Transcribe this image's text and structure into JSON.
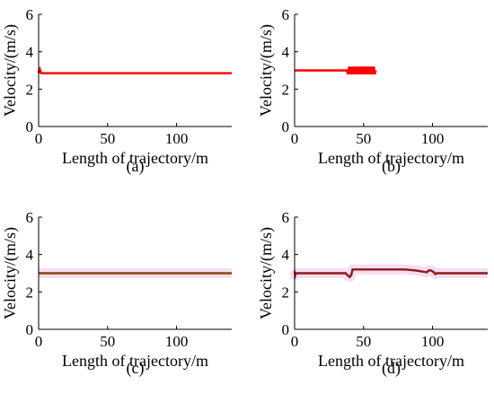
{
  "chart_data": [
    {
      "type": "line",
      "caption": "(a)",
      "xlabel": "Length of trajectory/m",
      "ylabel": "Velocity/(m/s)",
      "xlim": [
        0,
        140
      ],
      "ylim": [
        0,
        6
      ],
      "xticks": [
        "0",
        "50",
        "100"
      ],
      "yticks": [
        "0",
        "2",
        "4",
        "6"
      ],
      "grid": false,
      "series": [
        {
          "color": "#ff0000",
          "band_color": null,
          "x": [
            0,
            0.3,
            1,
            2,
            3,
            140
          ],
          "y": [
            3.0,
            2.85,
            3.05,
            2.85,
            2.85,
            2.85
          ]
        }
      ]
    },
    {
      "type": "line",
      "caption": "(b)",
      "xlabel": "Length of trajectory/m",
      "ylabel": "Velocity/(m/s)",
      "xlim": [
        0,
        140
      ],
      "ylim": [
        0,
        6
      ],
      "xticks": [
        "0",
        "50",
        "100"
      ],
      "yticks": [
        "0",
        "2",
        "4",
        "6"
      ],
      "grid": false,
      "series": [
        {
          "color": "#ff0000",
          "band_color": null,
          "x": [
            0,
            38,
            38.5,
            39.5,
            40,
            41,
            41.5,
            42.5,
            43,
            44,
            44.5,
            45.5,
            46,
            47,
            47.5,
            48.5,
            49,
            50,
            50.5,
            51.5,
            52,
            53,
            53.5,
            54.5,
            55,
            56,
            56.5,
            57.5,
            58,
            59
          ],
          "y": [
            3.0,
            3.0,
            2.8,
            3.2,
            2.8,
            3.2,
            2.8,
            3.2,
            2.8,
            3.2,
            2.8,
            3.2,
            2.8,
            3.2,
            2.8,
            3.2,
            2.8,
            3.2,
            2.8,
            3.2,
            2.8,
            3.2,
            2.8,
            3.2,
            2.8,
            3.2,
            2.8,
            3.2,
            2.8,
            3.0
          ]
        }
      ]
    },
    {
      "type": "line",
      "caption": "(c)",
      "xlabel": "Length of trajectory/m",
      "ylabel": "Velocity/(m/s)",
      "xlim": [
        0,
        140
      ],
      "ylim": [
        0,
        6
      ],
      "xticks": [
        "0",
        "50",
        "100"
      ],
      "yticks": [
        "0",
        "2",
        "4",
        "6"
      ],
      "grid": false,
      "series": [
        {
          "color": "#8b4513",
          "band_color": "#f6dcf2",
          "x": [
            0,
            140
          ],
          "y": [
            3.0,
            3.0
          ]
        }
      ]
    },
    {
      "type": "line",
      "caption": "(d)",
      "xlabel": "Length of trajectory/m",
      "ylabel": "Velocity/(m/s)",
      "xlim": [
        0,
        140
      ],
      "ylim": [
        0,
        6
      ],
      "xticks": [
        "0",
        "50",
        "100"
      ],
      "yticks": [
        "0",
        "2",
        "4",
        "6"
      ],
      "grid": false,
      "series": [
        {
          "color": "#8b1a1a",
          "band_color": "#f6dcf2",
          "x": [
            0,
            0.5,
            1,
            37,
            39,
            40,
            41,
            42,
            43,
            80,
            88,
            96,
            97,
            99,
            101,
            102,
            103,
            140
          ],
          "y": [
            3.1,
            2.9,
            3.0,
            3.0,
            2.85,
            2.8,
            2.9,
            3.2,
            3.2,
            3.2,
            3.15,
            3.05,
            3.15,
            3.15,
            3.05,
            2.95,
            3.0,
            3.0
          ]
        }
      ]
    }
  ]
}
